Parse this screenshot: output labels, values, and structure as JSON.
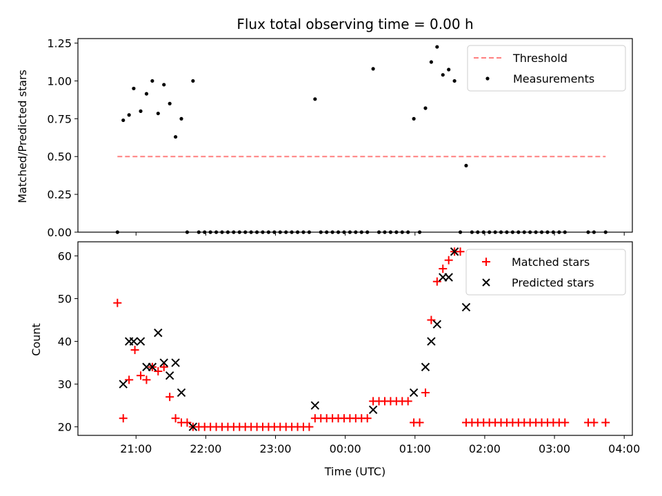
{
  "chart_data": [
    {
      "type": "scatter",
      "title": "Flux total observing time = 0.00 h",
      "ylabel": "Matched/Predicted stars",
      "ylim": [
        0,
        1.28
      ],
      "yticks": [
        "0.00",
        "0.25",
        "0.50",
        "0.75",
        "1.00",
        "1.25"
      ],
      "legend_position": "top-right",
      "threshold": {
        "name": "Threshold",
        "value": 0.5,
        "x_start": "20:44",
        "x_end": "03:44",
        "color": "#ff7f7f"
      },
      "series": [
        {
          "name": "Measurements",
          "color": "#000000",
          "points": [
            [
              "20:44",
              0
            ],
            [
              "20:49",
              0.74
            ],
            [
              "20:54",
              0.775
            ],
            [
              "20:58",
              0.95
            ],
            [
              "21:04",
              0.8
            ],
            [
              "21:09",
              0.915
            ],
            [
              "21:14",
              1.0
            ],
            [
              "21:19",
              0.785
            ],
            [
              "21:24",
              0.975
            ],
            [
              "21:29",
              0.85
            ],
            [
              "21:34",
              0.63
            ],
            [
              "21:39",
              0.75
            ],
            [
              "21:44",
              0
            ],
            [
              "21:49",
              1.0
            ],
            [
              "21:54",
              0
            ],
            [
              "21:59",
              0
            ],
            [
              "22:04",
              0
            ],
            [
              "22:09",
              0
            ],
            [
              "22:14",
              0
            ],
            [
              "22:19",
              0
            ],
            [
              "22:24",
              0
            ],
            [
              "22:29",
              0
            ],
            [
              "22:34",
              0
            ],
            [
              "22:39",
              0
            ],
            [
              "22:44",
              0
            ],
            [
              "22:49",
              0
            ],
            [
              "22:54",
              0
            ],
            [
              "22:59",
              0
            ],
            [
              "23:04",
              0
            ],
            [
              "23:09",
              0
            ],
            [
              "23:14",
              0
            ],
            [
              "23:19",
              0
            ],
            [
              "23:24",
              0
            ],
            [
              "23:29",
              0
            ],
            [
              "23:34",
              0.88
            ],
            [
              "23:39",
              0
            ],
            [
              "23:44",
              0
            ],
            [
              "23:49",
              0
            ],
            [
              "23:54",
              0
            ],
            [
              "23:59",
              0
            ],
            [
              "00:04",
              0
            ],
            [
              "00:09",
              0
            ],
            [
              "00:14",
              0
            ],
            [
              "00:19",
              0
            ],
            [
              "00:24",
              1.08
            ],
            [
              "00:29",
              0
            ],
            [
              "00:34",
              0
            ],
            [
              "00:39",
              0
            ],
            [
              "00:44",
              0
            ],
            [
              "00:49",
              0
            ],
            [
              "00:54",
              0
            ],
            [
              "00:59",
              0.75
            ],
            [
              "01:04",
              0
            ],
            [
              "01:09",
              0.82
            ],
            [
              "01:14",
              1.125
            ],
            [
              "01:19",
              1.225
            ],
            [
              "01:24",
              1.04
            ],
            [
              "01:29",
              1.075
            ],
            [
              "01:34",
              1.0
            ],
            [
              "01:39",
              0
            ],
            [
              "01:44",
              0.44
            ],
            [
              "01:49",
              0
            ],
            [
              "01:54",
              0
            ],
            [
              "01:59",
              0
            ],
            [
              "02:04",
              0
            ],
            [
              "02:09",
              0
            ],
            [
              "02:14",
              0
            ],
            [
              "02:19",
              0
            ],
            [
              "02:24",
              0
            ],
            [
              "02:29",
              0
            ],
            [
              "02:34",
              0
            ],
            [
              "02:39",
              0
            ],
            [
              "02:44",
              0
            ],
            [
              "02:49",
              0
            ],
            [
              "02:54",
              0
            ],
            [
              "02:59",
              0
            ],
            [
              "03:04",
              0
            ],
            [
              "03:09",
              0
            ],
            [
              "03:29",
              0
            ],
            [
              "03:34",
              0
            ],
            [
              "03:44",
              0
            ]
          ]
        }
      ]
    },
    {
      "type": "scatter",
      "xlabel": "Time (UTC)",
      "ylabel": "Count",
      "ylim": [
        18,
        63.3
      ],
      "yticks": [
        "20",
        "30",
        "40",
        "50",
        "60"
      ],
      "xticks": [
        "21:00",
        "22:00",
        "23:00",
        "00:00",
        "01:00",
        "02:00",
        "03:00",
        "04:00"
      ],
      "legend_position": "top-right",
      "series": [
        {
          "name": "Matched stars",
          "color": "#ff0000",
          "marker": "plus",
          "points": [
            [
              "20:44",
              49
            ],
            [
              "20:49",
              22
            ],
            [
              "20:54",
              31
            ],
            [
              "20:59",
              38
            ],
            [
              "21:04",
              32
            ],
            [
              "21:09",
              31
            ],
            [
              "21:14",
              34
            ],
            [
              "21:19",
              33
            ],
            [
              "21:24",
              34
            ],
            [
              "21:29",
              27
            ],
            [
              "21:34",
              22
            ],
            [
              "21:39",
              21
            ],
            [
              "21:44",
              21
            ],
            [
              "21:49",
              20
            ],
            [
              "21:54",
              20
            ],
            [
              "21:59",
              20
            ],
            [
              "22:04",
              20
            ],
            [
              "22:09",
              20
            ],
            [
              "22:14",
              20
            ],
            [
              "22:19",
              20
            ],
            [
              "22:24",
              20
            ],
            [
              "22:29",
              20
            ],
            [
              "22:34",
              20
            ],
            [
              "22:39",
              20
            ],
            [
              "22:44",
              20
            ],
            [
              "22:49",
              20
            ],
            [
              "22:54",
              20
            ],
            [
              "22:59",
              20
            ],
            [
              "23:04",
              20
            ],
            [
              "23:09",
              20
            ],
            [
              "23:14",
              20
            ],
            [
              "23:19",
              20
            ],
            [
              "23:24",
              20
            ],
            [
              "23:29",
              20
            ],
            [
              "23:34",
              22
            ],
            [
              "23:39",
              22
            ],
            [
              "23:44",
              22
            ],
            [
              "23:49",
              22
            ],
            [
              "23:54",
              22
            ],
            [
              "23:59",
              22
            ],
            [
              "00:04",
              22
            ],
            [
              "00:09",
              22
            ],
            [
              "00:14",
              22
            ],
            [
              "00:19",
              22
            ],
            [
              "00:24",
              26
            ],
            [
              "00:29",
              26
            ],
            [
              "00:34",
              26
            ],
            [
              "00:39",
              26
            ],
            [
              "00:44",
              26
            ],
            [
              "00:49",
              26
            ],
            [
              "00:54",
              26
            ],
            [
              "00:59",
              21
            ],
            [
              "01:04",
              21
            ],
            [
              "01:09",
              28
            ],
            [
              "01:14",
              45
            ],
            [
              "01:19",
              54
            ],
            [
              "01:24",
              57
            ],
            [
              "01:29",
              59
            ],
            [
              "01:34",
              61
            ],
            [
              "01:39",
              61
            ],
            [
              "01:44",
              21
            ],
            [
              "01:49",
              21
            ],
            [
              "01:54",
              21
            ],
            [
              "01:59",
              21
            ],
            [
              "02:04",
              21
            ],
            [
              "02:09",
              21
            ],
            [
              "02:14",
              21
            ],
            [
              "02:19",
              21
            ],
            [
              "02:24",
              21
            ],
            [
              "02:29",
              21
            ],
            [
              "02:34",
              21
            ],
            [
              "02:39",
              21
            ],
            [
              "02:44",
              21
            ],
            [
              "02:49",
              21
            ],
            [
              "02:54",
              21
            ],
            [
              "02:59",
              21
            ],
            [
              "03:04",
              21
            ],
            [
              "03:09",
              21
            ],
            [
              "03:29",
              21
            ],
            [
              "03:34",
              21
            ],
            [
              "03:44",
              21
            ]
          ]
        },
        {
          "name": "Predicted stars",
          "color": "#000000",
          "marker": "x",
          "points": [
            [
              "20:49",
              30
            ],
            [
              "20:54",
              40
            ],
            [
              "20:58",
              40
            ],
            [
              "21:04",
              40
            ],
            [
              "21:09",
              34
            ],
            [
              "21:14",
              34
            ],
            [
              "21:19",
              42
            ],
            [
              "21:24",
              35
            ],
            [
              "21:29",
              32
            ],
            [
              "21:34",
              35
            ],
            [
              "21:39",
              28
            ],
            [
              "21:49",
              20
            ],
            [
              "23:34",
              25
            ],
            [
              "00:24",
              24
            ],
            [
              "00:59",
              28
            ],
            [
              "01:09",
              34
            ],
            [
              "01:14",
              40
            ],
            [
              "01:19",
              44
            ],
            [
              "01:24",
              55
            ],
            [
              "01:29",
              55
            ],
            [
              "01:34",
              61
            ],
            [
              "01:44",
              48
            ]
          ]
        }
      ]
    }
  ]
}
